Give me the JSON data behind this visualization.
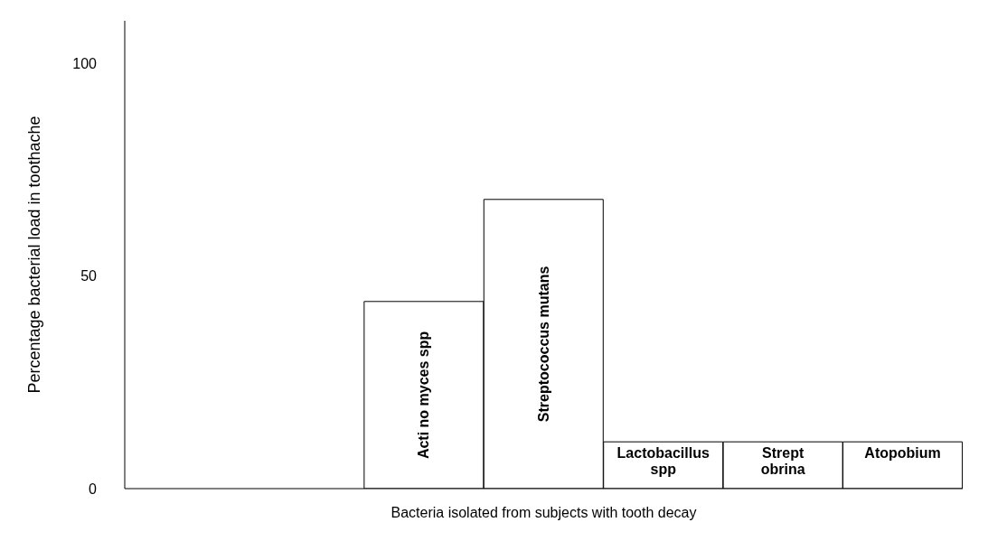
{
  "chart_data": {
    "type": "bar",
    "xlabel": "Bacteria isolated from subjects with tooth decay",
    "ylabel": "Percentage bacterial load in toothache",
    "categories": [
      null,
      null,
      "Acti no myces spp",
      "Streptococcus mutans",
      "Lactobacillus spp",
      "Strept obrina",
      "Atopobium"
    ],
    "values": [
      null,
      null,
      44,
      68,
      11,
      11,
      11
    ],
    "color": "#ffffff",
    "ylim": [
      0,
      110
    ],
    "yticks": [
      0,
      50,
      100
    ],
    "grid": false
  }
}
